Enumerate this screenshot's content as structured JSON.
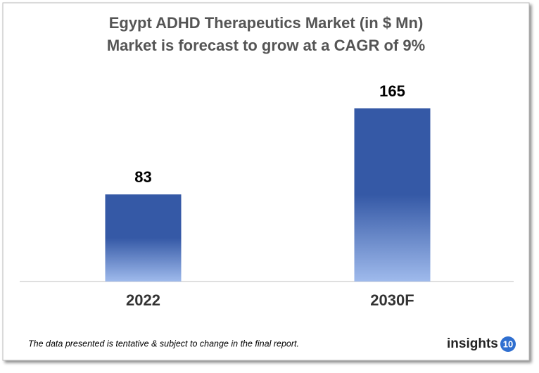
{
  "chart_data": {
    "type": "bar",
    "title": "Egypt ADHD Therapeutics Market (in $ Mn)",
    "subtitle": "Market is forecast to grow at a CAGR of 9%",
    "categories": [
      "2022",
      "2030F"
    ],
    "values": [
      83,
      165
    ],
    "color": "#3559a6",
    "color_light": "#9fbaec",
    "note": "The data presented is tentative & subject to change in the final report.",
    "logo": {
      "text": "insights",
      "number": "10"
    }
  }
}
